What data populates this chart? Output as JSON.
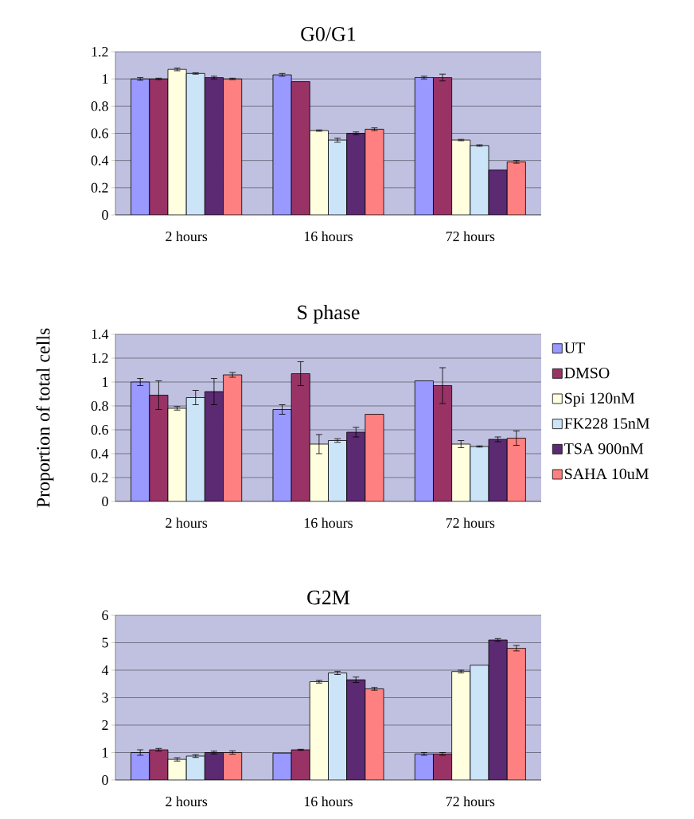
{
  "chart_data": [
    {
      "type": "bar",
      "title": "G0/G1",
      "categories": [
        "2 hours",
        "16 hours",
        "72 hours"
      ],
      "ylim": [
        0,
        1.2
      ],
      "yticks": [
        0,
        0.2,
        0.4,
        0.6,
        0.8,
        1,
        1.2
      ],
      "grid": "y",
      "series": [
        {
          "color": "#9999ff",
          "values": [
            1.0,
            1.03,
            1.01
          ],
          "errors": [
            0.01,
            0.01,
            0.01
          ]
        },
        {
          "color": "#993366",
          "values": [
            1.0,
            0.98,
            1.01
          ],
          "errors": [
            0.005,
            null,
            0.025
          ]
        },
        {
          "color": "#ffffe0",
          "values": [
            1.07,
            0.62,
            0.55
          ],
          "errors": [
            0.01,
            0.005,
            0.005
          ]
        },
        {
          "color": "#cce4f7",
          "values": [
            1.04,
            0.55,
            0.51
          ],
          "errors": [
            0.005,
            0.015,
            0.005
          ]
        },
        {
          "color": "#5c2a72",
          "values": [
            1.01,
            0.6,
            0.33
          ],
          "errors": [
            0.01,
            0.01,
            null
          ]
        },
        {
          "color": "#ff8080",
          "values": [
            1.0,
            0.63,
            0.39
          ],
          "errors": [
            0.005,
            0.01,
            0.01
          ]
        }
      ]
    },
    {
      "type": "bar",
      "title": "S phase",
      "ylabel": "Proportion of total cells",
      "categories": [
        "2 hours",
        "16 hours",
        "72 hours"
      ],
      "ylim": [
        0,
        1.4
      ],
      "yticks": [
        0,
        0.2,
        0.4,
        0.6,
        0.8,
        1,
        1.2,
        1.4
      ],
      "grid": "y",
      "legend": "right",
      "series": [
        {
          "name": "UT",
          "color": "#9999ff",
          "values": [
            1.0,
            0.77,
            1.01
          ],
          "errors": [
            0.03,
            0.04,
            null
          ]
        },
        {
          "name": "DMSO",
          "color": "#993366",
          "values": [
            0.89,
            1.07,
            0.97
          ],
          "errors": [
            0.12,
            0.1,
            0.15
          ]
        },
        {
          "name": "Spi 120nM",
          "color": "#ffffe0",
          "values": [
            0.78,
            0.48,
            0.48
          ],
          "errors": [
            0.015,
            0.08,
            0.03
          ]
        },
        {
          "name": "FK228 15nM",
          "color": "#cce4f7",
          "values": [
            0.87,
            0.51,
            0.46
          ],
          "errors": [
            0.06,
            0.015,
            0.005
          ]
        },
        {
          "name": "TSA 900nM",
          "color": "#5c2a72",
          "values": [
            0.92,
            0.58,
            0.52
          ],
          "errors": [
            0.11,
            0.04,
            0.02
          ]
        },
        {
          "name": "SAHA 10uM",
          "color": "#ff8080",
          "values": [
            1.06,
            0.73,
            0.53
          ],
          "errors": [
            0.02,
            null,
            0.06
          ]
        }
      ]
    },
    {
      "type": "bar",
      "title": "G2M",
      "categories": [
        "2 hours",
        "16 hours",
        "72 hours"
      ],
      "ylim": [
        0,
        6
      ],
      "yticks": [
        0,
        1,
        2,
        3,
        4,
        5,
        6
      ],
      "grid": "y",
      "series": [
        {
          "color": "#9999ff",
          "values": [
            1.0,
            0.98,
            0.95
          ],
          "errors": [
            0.1,
            null,
            0.05
          ]
        },
        {
          "color": "#993366",
          "values": [
            1.1,
            1.1,
            0.95
          ],
          "errors": [
            0.05,
            0.02,
            0.05
          ]
        },
        {
          "color": "#ffffe0",
          "values": [
            0.75,
            3.58,
            3.95
          ],
          "errors": [
            0.06,
            0.05,
            0.05
          ]
        },
        {
          "color": "#cce4f7",
          "values": [
            0.87,
            3.9,
            4.18
          ],
          "errors": [
            0.05,
            0.06,
            null
          ]
        },
        {
          "color": "#5c2a72",
          "values": [
            1.0,
            3.65,
            5.1
          ],
          "errors": [
            0.05,
            0.1,
            0.05
          ]
        },
        {
          "color": "#ff8080",
          "values": [
            1.0,
            3.32,
            4.8
          ],
          "errors": [
            0.06,
            0.05,
            0.1
          ]
        }
      ]
    }
  ]
}
